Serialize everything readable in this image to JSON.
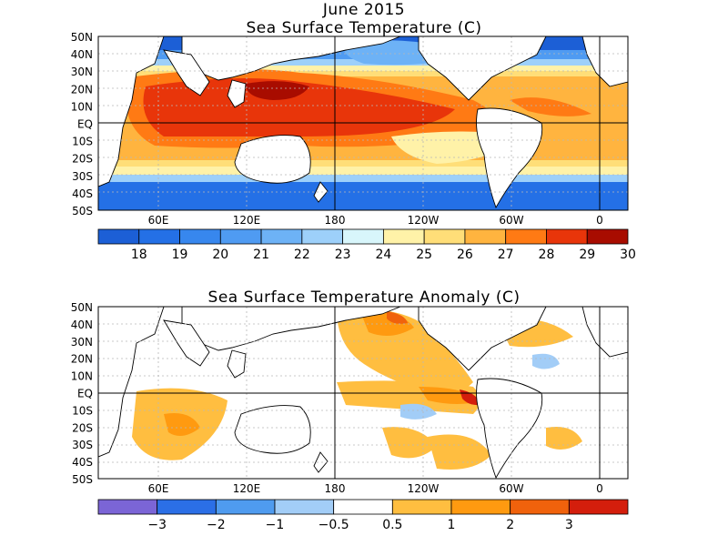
{
  "top_panel": {
    "title_line1": "June 2015",
    "title_line2": "Sea Surface Temperature (C)",
    "lat_labels": [
      "50N",
      "40N",
      "30N",
      "20N",
      "10N",
      "EQ",
      "10S",
      "20S",
      "30S",
      "40S",
      "50S"
    ],
    "lon_labels": [
      "60E",
      "120E",
      "180",
      "120W",
      "60W",
      "0"
    ],
    "colorbar": {
      "colors": [
        "#1c5fd6",
        "#2470e6",
        "#3787ee",
        "#4f9bf2",
        "#6db2f6",
        "#9dd0fa",
        "#d8f6fb",
        "#fff2a8",
        "#ffde78",
        "#ffb43f",
        "#ff7a14",
        "#e8350a",
        "#a80c00"
      ],
      "labels": [
        "18",
        "19",
        "20",
        "21",
        "22",
        "23",
        "24",
        "25",
        "26",
        "27",
        "28",
        "29",
        "30"
      ]
    }
  },
  "bottom_panel": {
    "title": "Sea Surface Temperature Anomaly (C)",
    "lat_labels": [
      "50N",
      "40N",
      "30N",
      "20N",
      "10N",
      "EQ",
      "10S",
      "20S",
      "30S",
      "40S",
      "50S"
    ],
    "lon_labels": [
      "60E",
      "120E",
      "180",
      "120W",
      "60W",
      "0"
    ],
    "colorbar": {
      "colors": [
        "#7b65d6",
        "#2b6fe6",
        "#4f9bef",
        "#a2cdf7",
        "#ffffff",
        "#ffbe40",
        "#ff9a10",
        "#f0620c",
        "#d41e0c"
      ],
      "labels": [
        "−3",
        "−2",
        "−1",
        "−0.5",
        "0.5",
        "1",
        "2",
        "3"
      ]
    }
  },
  "colors": {
    "land": "#ffffff",
    "coastline": "#000000",
    "grid": "#b8b8b8"
  }
}
